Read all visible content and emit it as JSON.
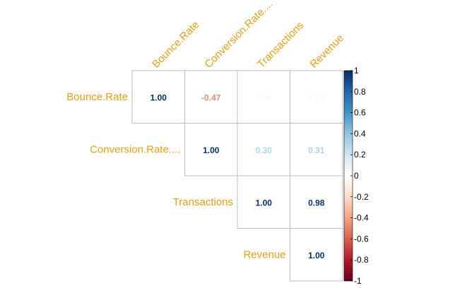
{
  "chart_data": {
    "type": "heatmap",
    "variant": "correlation-matrix-upper",
    "variables": [
      "Bounce.Rate",
      "Conversion.Rate....",
      "Transactions",
      "Revenue"
    ],
    "cells": [
      {
        "row": "Bounce.Rate",
        "col": "Bounce.Rate",
        "value": 1.0,
        "label": "1.00"
      },
      {
        "row": "Bounce.Rate",
        "col": "Conversion.Rate....",
        "value": -0.47,
        "label": "-0.47"
      },
      {
        "row": "Bounce.Rate",
        "col": "Transactions",
        "value": 0.04,
        "label": "0.04"
      },
      {
        "row": "Bounce.Rate",
        "col": "Revenue",
        "value": 0.04,
        "label": "0.04"
      },
      {
        "row": "Conversion.Rate....",
        "col": "Conversion.Rate....",
        "value": 1.0,
        "label": "1.00"
      },
      {
        "row": "Conversion.Rate....",
        "col": "Transactions",
        "value": 0.3,
        "label": "0.30"
      },
      {
        "row": "Conversion.Rate....",
        "col": "Revenue",
        "value": 0.31,
        "label": "0.31"
      },
      {
        "row": "Transactions",
        "col": "Transactions",
        "value": 1.0,
        "label": "1.00"
      },
      {
        "row": "Transactions",
        "col": "Revenue",
        "value": 0.98,
        "label": "0.98"
      },
      {
        "row": "Revenue",
        "col": "Revenue",
        "value": 1.0,
        "label": "1.00"
      }
    ],
    "colorbar": {
      "range": [
        -1,
        1
      ],
      "ticks": [
        "1",
        "0.8",
        "0.6",
        "0.4",
        "0.2",
        "0",
        "-0.2",
        "-0.4",
        "-0.6",
        "-0.8",
        "-1"
      ]
    },
    "colors": {
      "label": "#e8a012",
      "grid": "#bdbdbd",
      "scale": [
        "#67001f",
        "#b2182b",
        "#d6604d",
        "#f4a582",
        "#fddbc7",
        "#ffffff",
        "#d1e5f0",
        "#92c5de",
        "#4393c3",
        "#2166ac",
        "#053061"
      ]
    },
    "grid": true,
    "legend": "right"
  }
}
